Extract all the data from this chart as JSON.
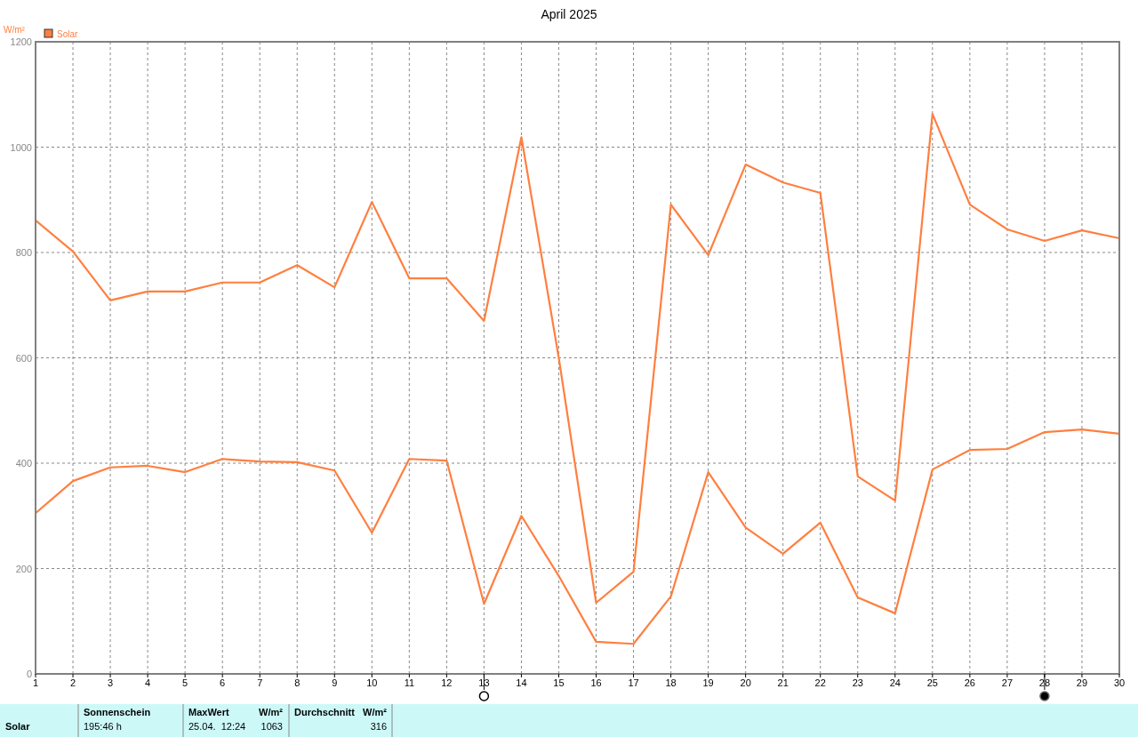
{
  "chart_data": {
    "type": "line",
    "title": "April 2025",
    "ylabel": "W/m²",
    "x": [
      1,
      2,
      3,
      4,
      5,
      6,
      7,
      8,
      9,
      10,
      11,
      12,
      13,
      14,
      15,
      16,
      17,
      18,
      19,
      20,
      21,
      22,
      23,
      24,
      25,
      26,
      27,
      28,
      29,
      30
    ],
    "series": [
      {
        "name": "Solar",
        "color": "#ff7f3f",
        "values": [
          861,
          802,
          709,
          726,
          726,
          743,
          743,
          776,
          734,
          896,
          751,
          751,
          670,
          1019,
          600,
          135,
          194,
          891,
          795,
          967,
          933,
          913,
          375,
          329,
          1063,
          891,
          844,
          822,
          842,
          827
        ]
      },
      {
        "color": "#ff7f3f",
        "values": [
          305,
          366,
          392,
          395,
          383,
          408,
          403,
          402,
          386,
          268,
          408,
          405,
          133,
          300,
          186,
          61,
          57,
          147,
          383,
          278,
          228,
          287,
          145,
          115,
          388,
          425,
          427,
          459,
          464,
          456
        ]
      }
    ],
    "xlim": [
      1,
      30
    ],
    "xticks": [
      1,
      2,
      3,
      4,
      5,
      6,
      7,
      8,
      9,
      10,
      11,
      12,
      13,
      14,
      15,
      16,
      17,
      18,
      19,
      20,
      21,
      22,
      23,
      24,
      25,
      26,
      27,
      28,
      29,
      30
    ],
    "ylim": [
      0,
      1200
    ],
    "yticks": [
      0,
      200,
      400,
      600,
      800,
      1000,
      1200
    ],
    "grid": true,
    "legend": "top left",
    "marker": "none",
    "line_style": "solid",
    "annotations": [
      "Solar",
      "Sonnenschein",
      "195:46 h",
      "MaxWert",
      "W/m²",
      "25.04.  12:24",
      "1063",
      "Durchschnitt",
      "W/m²",
      "316"
    ]
  }
}
